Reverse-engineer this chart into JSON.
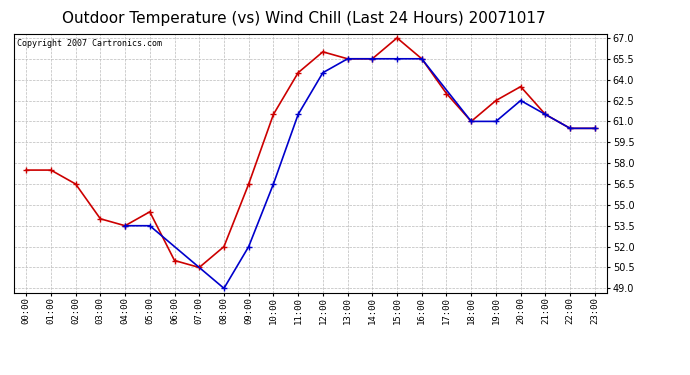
{
  "title": "Outdoor Temperature (vs) Wind Chill (Last 24 Hours) 20071017",
  "copyright_text": "Copyright 2007 Cartronics.com",
  "hours": [
    "00:00",
    "01:00",
    "02:00",
    "03:00",
    "04:00",
    "05:00",
    "06:00",
    "07:00",
    "08:00",
    "09:00",
    "10:00",
    "11:00",
    "12:00",
    "13:00",
    "14:00",
    "15:00",
    "16:00",
    "17:00",
    "18:00",
    "19:00",
    "20:00",
    "21:00",
    "22:00",
    "23:00"
  ],
  "temp": [
    57.5,
    57.5,
    56.5,
    54.0,
    53.5,
    54.5,
    51.0,
    50.5,
    52.0,
    56.5,
    61.5,
    64.5,
    66.0,
    65.5,
    65.5,
    67.0,
    65.5,
    63.0,
    61.0,
    62.5,
    63.5,
    61.5,
    60.5,
    60.5
  ],
  "wind_chill": [
    null,
    null,
    null,
    null,
    53.5,
    53.5,
    null,
    null,
    49.0,
    52.0,
    56.5,
    61.5,
    64.5,
    65.5,
    65.5,
    65.5,
    65.5,
    null,
    61.0,
    61.0,
    62.5,
    61.5,
    60.5,
    60.5
  ],
  "temp_color": "#cc0000",
  "wind_chill_color": "#0000cc",
  "bg_color": "#ffffff",
  "plot_bg_color": "#ffffff",
  "grid_color": "#bbbbbb",
  "ylim": [
    49.0,
    67.0
  ],
  "yticks": [
    49.0,
    50.5,
    52.0,
    53.5,
    55.0,
    56.5,
    58.0,
    59.5,
    61.0,
    62.5,
    64.0,
    65.5,
    67.0
  ],
  "title_fontsize": 11,
  "marker": "+",
  "marker_size": 5,
  "line_width": 1.2
}
